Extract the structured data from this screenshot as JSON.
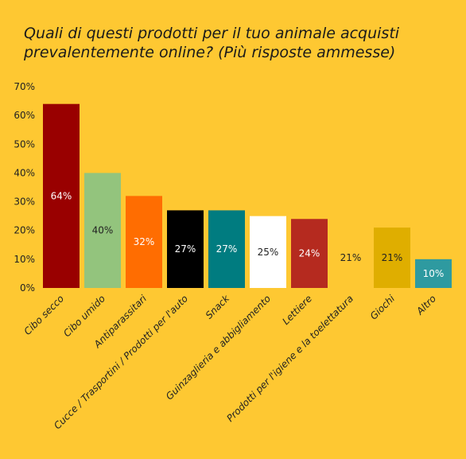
{
  "title_lines": [
    "Quali di questi prodotti per il tuo animale acquisti",
    "prevalentemente online? (Più risposte ammesse)"
  ],
  "chart_data": {
    "type": "bar",
    "title": "Quali di questi prodotti per il tuo animale acquisti prevalentemente online? (Più risposte ammesse)",
    "categories": [
      "Cibo secco",
      "Cibo umido",
      "Antiparassitari",
      "Cucce / Trasportini / Prodotti per l'auto",
      "Snack",
      "Guinzaglieria e abbigliamento",
      "Lettiere",
      "Prodotti per l'igiene e la toelettatura",
      "Giochi",
      "Altro"
    ],
    "values": [
      64,
      40,
      32,
      27,
      27,
      25,
      24,
      21,
      21,
      10
    ],
    "value_labels": [
      "64%",
      "40%",
      "32%",
      "27%",
      "27%",
      "25%",
      "24%",
      "21%",
      "21%",
      "10%"
    ],
    "bar_colors": [
      "#990000",
      "#93C47D",
      "#FF6D01",
      "#000000",
      "#007C80",
      "#FFFFFF",
      "#B52A1F",
      "#FEC832",
      "#DFAE00",
      "#2E9AA0"
    ],
    "label_colors": [
      "#FFFFFF",
      "#222222",
      "#FFFFFF",
      "#FFFFFF",
      "#FFFFFF",
      "#222222",
      "#FFFFFF",
      "#222222",
      "#222222",
      "#FFFFFF"
    ],
    "ylim": [
      0,
      70
    ],
    "yticks": [
      0,
      10,
      20,
      30,
      40,
      50,
      60,
      70
    ],
    "ytick_labels": [
      "0%",
      "10%",
      "20%",
      "30%",
      "40%",
      "50%",
      "60%",
      "70%"
    ],
    "xlabel": "",
    "ylabel": "",
    "grid": false,
    "legend": "none"
  }
}
